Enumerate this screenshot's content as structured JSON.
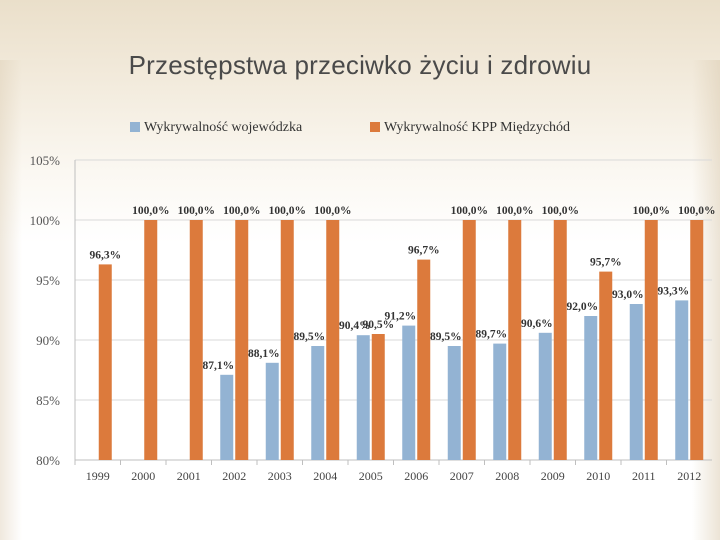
{
  "slide": {
    "title": "Przestępstwa przeciwko życiu i zdrowiu"
  },
  "chart_data": {
    "type": "bar",
    "title": "",
    "xlabel": "",
    "ylabel": "",
    "ylim": [
      80,
      105
    ],
    "y_ticks": [
      "80%",
      "85%",
      "90%",
      "95%",
      "100%",
      "105%"
    ],
    "y_tick_values": [
      80,
      85,
      90,
      95,
      100,
      105
    ],
    "grid": true,
    "legend_position": "top",
    "categories": [
      "1999",
      "2000",
      "2001",
      "2002",
      "2003",
      "2004",
      "2005",
      "2006",
      "2007",
      "2008",
      "2009",
      "2010",
      "2011",
      "2012"
    ],
    "series": [
      {
        "name": "Wykrywalność wojewódzka",
        "color": "#93b3d3",
        "values": [
          null,
          null,
          null,
          87.1,
          88.1,
          89.5,
          90.4,
          91.2,
          89.5,
          89.7,
          90.6,
          92.0,
          93.0,
          93.3
        ],
        "labels": [
          "",
          "",
          "",
          "87,1%",
          "88,1%",
          "89,5%",
          "90,4%",
          "91,2%",
          "89,5%",
          "89,7%",
          "90,6%",
          "92,0%",
          "93,0%",
          "93,3%"
        ]
      },
      {
        "name": "Wykrywalność KPP Międzychód",
        "color": "#dc7a3c",
        "values": [
          96.3,
          100.0,
          100.0,
          100.0,
          100.0,
          100.0,
          90.5,
          96.7,
          100.0,
          100.0,
          100.0,
          95.7,
          100.0,
          100.0
        ],
        "labels": [
          "96,3%",
          "100,0%",
          "100,0%",
          "100,0%",
          "100,0%",
          "100,0%",
          "90,5%",
          "96,7%",
          "100,0%",
          "100,0%",
          "100,0%",
          "95,7%",
          "100,0%",
          "100,0%"
        ]
      }
    ]
  }
}
